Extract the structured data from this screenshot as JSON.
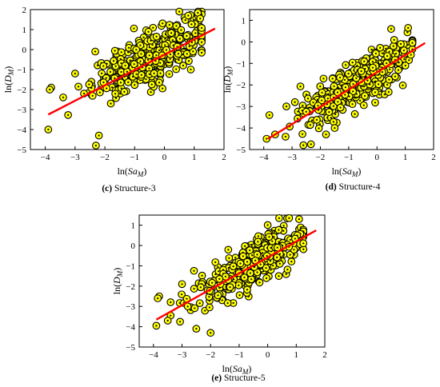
{
  "figure": {
    "panels": [
      {
        "caption_letter": "(c)",
        "caption_text": "Structure-3",
        "xlabel_main": "ln(",
        "xlabel_var": "Sa",
        "xlabel_sub": "M",
        "xlabel_close": ")",
        "ylabel_main": "ln(",
        "ylabel_var": "D",
        "ylabel_sub": "M",
        "ylabel_close": ")"
      },
      {
        "caption_letter": "(d)",
        "caption_text": "Structure-4",
        "xlabel_main": "ln(",
        "xlabel_var": "Sa",
        "xlabel_sub": "M",
        "xlabel_close": ")",
        "ylabel_main": "ln(",
        "ylabel_var": "D",
        "ylabel_sub": "M",
        "ylabel_close": ")"
      },
      {
        "caption_letter": "(e)",
        "caption_text": "Structure-5",
        "xlabel_main": "ln(",
        "xlabel_var": "Sa",
        "xlabel_sub": "M",
        "xlabel_close": ")",
        "ylabel_main": "ln(",
        "ylabel_var": "D",
        "ylabel_sub": "M",
        "ylabel_close": ")"
      }
    ]
  },
  "colors": {
    "marker_fill": "#ffff00",
    "marker_edge": "#000000",
    "fit_line": "#ff0000",
    "axis": "#000000"
  },
  "chart_data": [
    {
      "type": "scatter",
      "title": "Structure-3",
      "xlim": [
        -4.5,
        2
      ],
      "ylim": [
        -5,
        2
      ],
      "xticks": [
        -4,
        -3,
        -2,
        -1,
        0,
        1,
        2
      ],
      "yticks": [
        -5,
        -4,
        -3,
        -2,
        -1,
        0,
        1,
        2
      ],
      "fit_line": {
        "x": [
          -3.9,
          1.7
        ],
        "y": [
          -3.25,
          1.05
        ]
      },
      "extreme_points": [
        [
          -3.8,
          -1.9
        ],
        [
          -3.85,
          -2.0
        ],
        [
          -3.9,
          -4.0
        ],
        [
          -2.3,
          -4.8
        ],
        [
          -2.2,
          -4.3
        ],
        [
          -1.8,
          -2.7
        ],
        [
          0.5,
          1.9
        ],
        [
          1.2,
          1.55
        ],
        [
          0.8,
          1.7
        ],
        [
          -3.0,
          -1.2
        ],
        [
          -2.7,
          -2.2
        ]
      ],
      "cloud": {
        "count": 380,
        "x_mean": -0.5,
        "x_sd": 0.95,
        "x_min": -3.4,
        "x_max": 1.25,
        "slope": 0.77,
        "intercept": 0.0,
        "resid_sd": 0.62,
        "y_min": -4.6,
        "y_max": 1.9
      }
    },
    {
      "type": "scatter",
      "title": "Structure-4",
      "xlim": [
        -4.5,
        2
      ],
      "ylim": [
        -5,
        1.5
      ],
      "xticks": [
        -4,
        -3,
        -2,
        -1,
        0,
        1,
        2
      ],
      "yticks": [
        -5,
        -4,
        -3,
        -2,
        -1,
        0,
        1
      ],
      "fit_line": {
        "x": [
          -3.85,
          1.7
        ],
        "y": [
          -4.5,
          -0.05
        ]
      },
      "extreme_points": [
        [
          -3.8,
          -3.4
        ],
        [
          -3.9,
          -4.5
        ],
        [
          -3.6,
          -4.3
        ],
        [
          -2.6,
          -4.8
        ],
        [
          -1.8,
          -4.3
        ],
        [
          0.5,
          0.6
        ],
        [
          1.1,
          0.65
        ],
        [
          1.2,
          -0.6
        ],
        [
          -3.2,
          -3.0
        ],
        [
          -2.9,
          -2.8
        ]
      ],
      "cloud": {
        "count": 380,
        "x_mean": -0.6,
        "x_sd": 0.95,
        "x_min": -3.4,
        "x_max": 1.25,
        "slope": 0.8,
        "intercept": -1.4,
        "resid_sd": 0.52,
        "y_min": -4.8,
        "y_max": 0.65
      }
    },
    {
      "type": "scatter",
      "title": "Structure-5",
      "xlim": [
        -4.5,
        2
      ],
      "ylim": [
        -5,
        1.5
      ],
      "xticks": [
        -4,
        -3,
        -2,
        -1,
        0,
        1,
        2
      ],
      "yticks": [
        -5,
        -4,
        -3,
        -2,
        -1,
        0,
        1
      ],
      "fit_line": {
        "x": [
          -3.9,
          1.7
        ],
        "y": [
          -3.65,
          0.75
        ]
      },
      "extreme_points": [
        [
          -3.8,
          -2.5
        ],
        [
          -3.85,
          -2.6
        ],
        [
          -3.9,
          -3.95
        ],
        [
          -2.5,
          -4.1
        ],
        [
          -2.0,
          -4.3
        ],
        [
          0.4,
          1.35
        ],
        [
          1.1,
          1.3
        ],
        [
          -3.0,
          -1.9
        ],
        [
          -2.8,
          -3.0
        ],
        [
          -3.5,
          -3.7
        ]
      ],
      "cloud": {
        "count": 380,
        "x_mean": -0.5,
        "x_sd": 0.95,
        "x_min": -3.4,
        "x_max": 1.25,
        "slope": 0.79,
        "intercept": -0.55,
        "resid_sd": 0.58,
        "y_min": -4.5,
        "y_max": 1.35
      }
    }
  ]
}
